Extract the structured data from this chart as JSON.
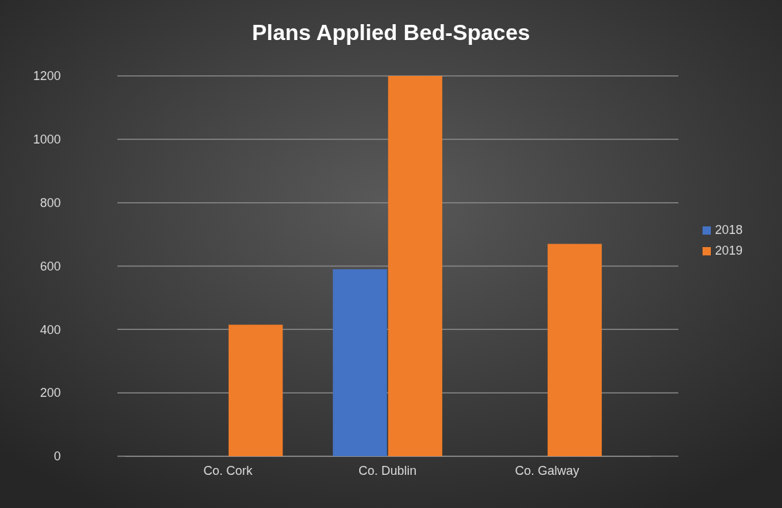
{
  "chart_data": {
    "type": "bar",
    "title": "Plans Applied Bed-Spaces",
    "categories": [
      "Co. Cork",
      "Co. Dublin",
      "Co. Galway"
    ],
    "series": [
      {
        "name": "2018",
        "color": "#4472c4",
        "values": [
          null,
          590,
          null
        ]
      },
      {
        "name": "2019",
        "color": "#f07d2a",
        "values": [
          415,
          1200,
          670
        ]
      }
    ],
    "ylim": [
      0,
      1200
    ],
    "yticks": [
      0,
      200,
      400,
      600,
      800,
      1000,
      1200
    ],
    "grid": "y",
    "legend": "right"
  }
}
